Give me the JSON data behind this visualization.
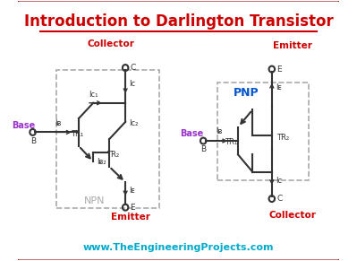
{
  "title": "Introduction to Darlington Transistor",
  "title_color": "#cc0000",
  "title_fontsize": 12,
  "bg_color": "#ffffff",
  "border_color": "#8b0000",
  "website": "www.TheEngineeringProjects.com",
  "website_color": "#00aacc",
  "npn_label": "NPN",
  "pnp_label": "PNP",
  "base_color": "#9933cc",
  "collector_emitter_color": "#cc0000",
  "label_color": "#333333",
  "current_color": "#333333",
  "transistor_color": "#333333",
  "dashed_box_color": "#aaaaaa",
  "pnp_text_color": "#0055cc"
}
